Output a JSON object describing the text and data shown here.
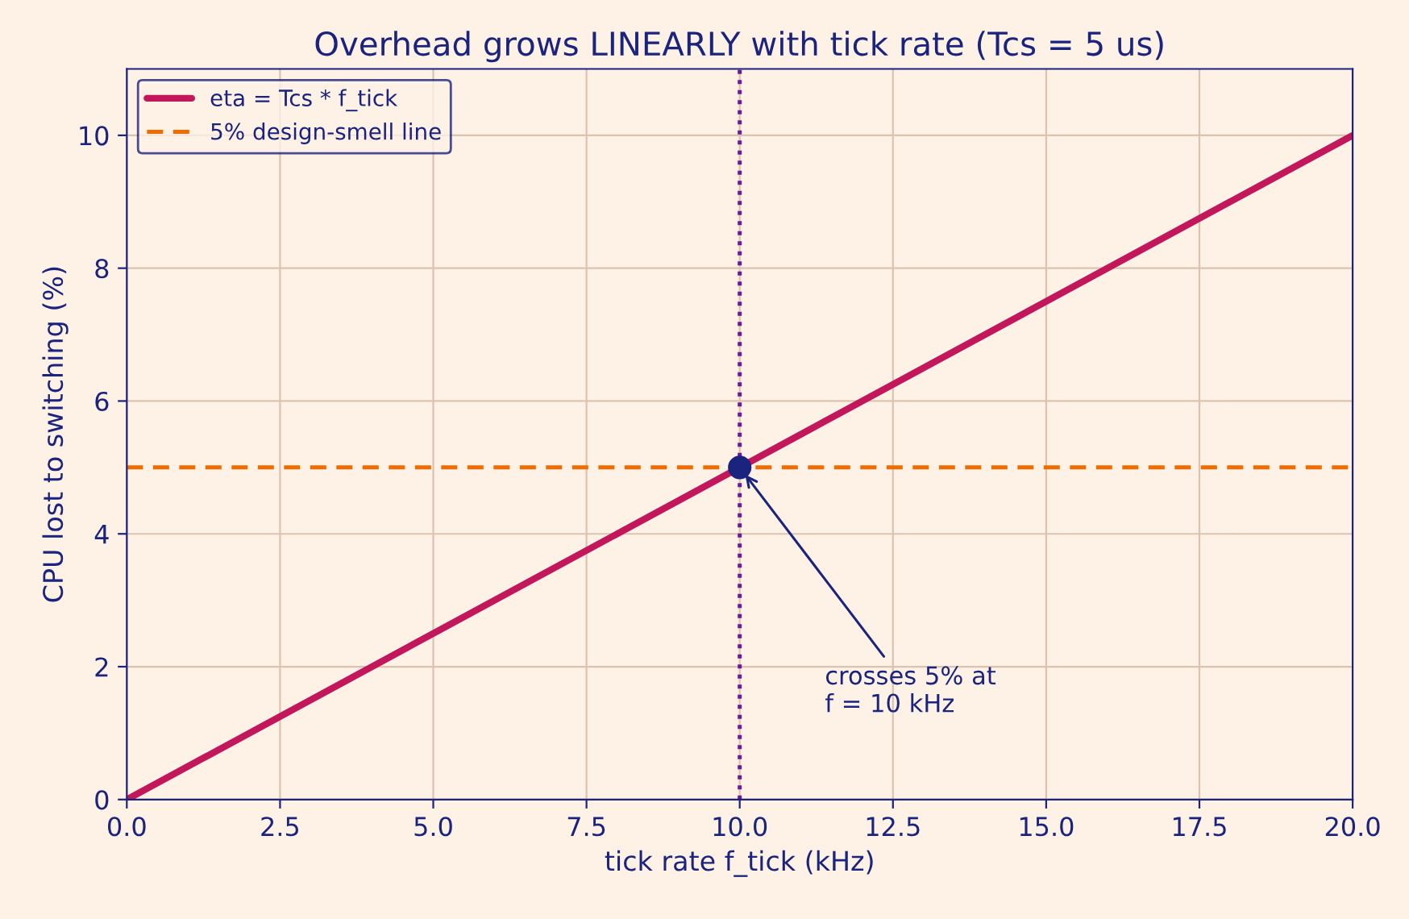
{
  "chart_data": {
    "type": "line",
    "title": "Overhead grows LINEARLY with tick rate (Tcs = 5 us)",
    "xlabel": "tick rate f_tick (kHz)",
    "ylabel": "CPU lost to switching (%)",
    "series": [
      {
        "name": "eta = Tcs * f_tick",
        "color": "#c2185b",
        "x": [
          0,
          20
        ],
        "values": [
          0,
          10
        ]
      },
      {
        "type": "scatter",
        "color": "#1a237e",
        "x": [
          10
        ],
        "values": [
          5
        ],
        "marker": "circle"
      }
    ],
    "ref_lines": [
      {
        "axis": "y",
        "value": 5,
        "label": "5% design-smell line",
        "color": "#ef6c00",
        "line_style": "dashed"
      },
      {
        "axis": "x",
        "value": 10,
        "color": "#6a1b9a",
        "line_style": "dotted"
      }
    ],
    "annotations": [
      {
        "text": "crosses 5% at\nf = 10 kHz",
        "x": 10,
        "y": 5
      }
    ],
    "xlim": [
      0,
      20
    ],
    "ylim": [
      0,
      11
    ],
    "xticks": [
      {
        "value": 0,
        "label": "0.0"
      },
      {
        "value": 2.5,
        "label": "2.5"
      },
      {
        "value": 5,
        "label": "5.0"
      },
      {
        "value": 7.5,
        "label": "7.5"
      },
      {
        "value": 10,
        "label": "10.0"
      },
      {
        "value": 12.5,
        "label": "12.5"
      },
      {
        "value": 15,
        "label": "15.0"
      },
      {
        "value": 17.5,
        "label": "17.5"
      },
      {
        "value": 20,
        "label": "20.0"
      }
    ],
    "yticks": [
      0,
      2,
      4,
      6,
      8,
      10
    ],
    "grid": true,
    "legend": "top left"
  }
}
